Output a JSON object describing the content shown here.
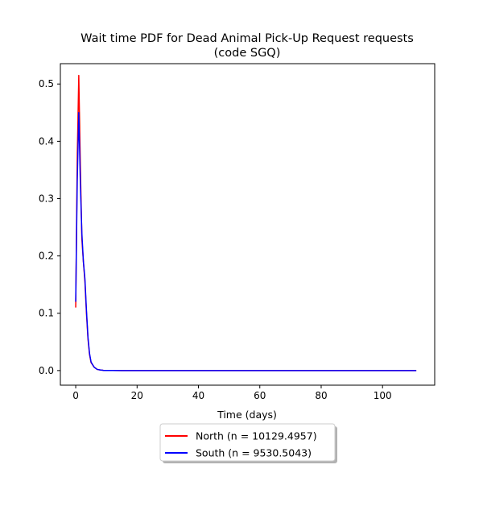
{
  "chart_data": {
    "type": "line",
    "title_line1": "Wait time PDF for Dead Animal Pick-Up Request  requests",
    "title_line2": "(code SGQ)",
    "xlabel": "Time (days)",
    "ylabel": "",
    "xlim": [
      -5,
      117
    ],
    "ylim": [
      -0.0255,
      0.5355
    ],
    "x_ticks": [
      0,
      20,
      40,
      60,
      80,
      100
    ],
    "y_ticks": [
      0.0,
      0.1,
      0.2,
      0.3,
      0.4,
      0.5
    ],
    "x_tick_labels": [
      "0",
      "20",
      "40",
      "60",
      "80",
      "100"
    ],
    "y_tick_labels": [
      "0.0",
      "0.1",
      "0.2",
      "0.3",
      "0.4",
      "0.5"
    ],
    "legend_position": "bottom-center (below axes)",
    "series": [
      {
        "name": "North (n = 10129.4957)",
        "color": "#ff0000",
        "x": [
          0,
          0.5,
          1,
          1.5,
          2,
          2.5,
          3,
          3.5,
          4,
          4.5,
          5,
          6,
          7,
          8,
          9,
          10,
          12,
          15,
          20,
          30,
          50,
          80,
          111
        ],
        "y": [
          0.11,
          0.37,
          0.515,
          0.36,
          0.23,
          0.19,
          0.155,
          0.1,
          0.055,
          0.028,
          0.014,
          0.006,
          0.002,
          0.001,
          0.0004,
          0.0002,
          0.0001,
          0.0,
          0.0,
          0.0,
          0.0,
          0.0,
          0.0
        ]
      },
      {
        "name": "South (n = 9530.5043)",
        "color": "#0000ff",
        "x": [
          0,
          0.5,
          1,
          1.5,
          2,
          2.5,
          3,
          3.5,
          4,
          4.5,
          5,
          6,
          7,
          8,
          9,
          10,
          12,
          15,
          20,
          30,
          50,
          80,
          111
        ],
        "y": [
          0.12,
          0.33,
          0.45,
          0.33,
          0.24,
          0.19,
          0.16,
          0.105,
          0.058,
          0.03,
          0.015,
          0.006,
          0.002,
          0.001,
          0.0004,
          0.0002,
          0.0001,
          0.0,
          0.0,
          0.0,
          0.0,
          0.0,
          0.0
        ]
      }
    ]
  }
}
